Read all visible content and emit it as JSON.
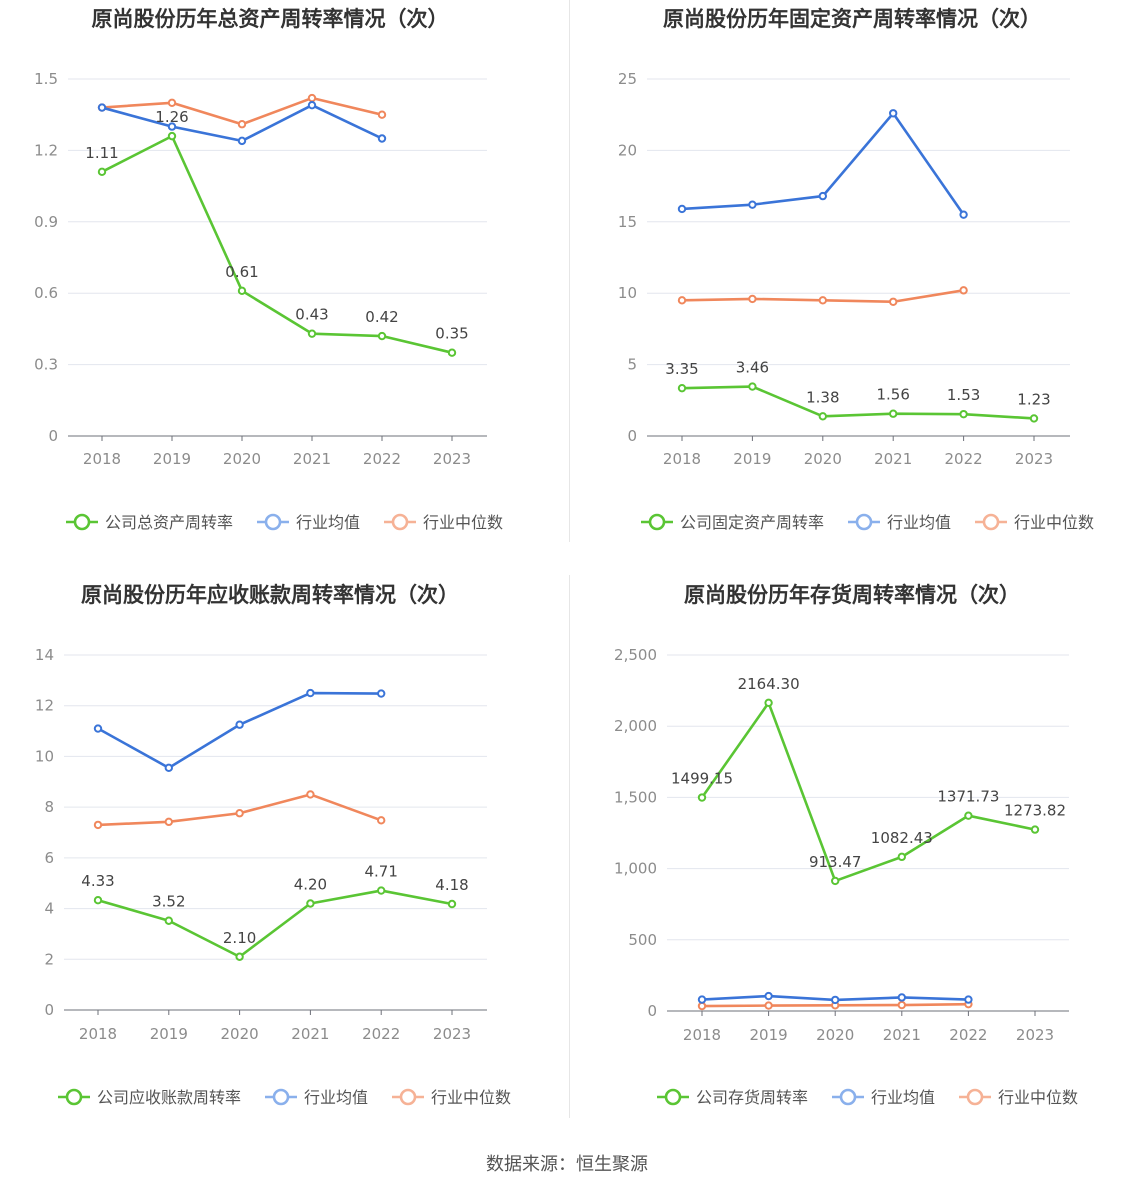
{
  "legend_labels": [
    "行业均值",
    "行业中位数"
  ],
  "colors": {
    "company": "#5ac534",
    "avg": "#3a74d8",
    "median": "#f0875c"
  },
  "footer": "数据来源：恒生聚源",
  "chart_data": [
    {
      "type": "line",
      "title": "原尚股份历年总资产周转率情况（次）",
      "categories": [
        "2018",
        "2019",
        "2020",
        "2021",
        "2022",
        "2023"
      ],
      "y_ticks": [
        "0",
        "0.3",
        "0.6",
        "0.9",
        "1.2",
        "1.5"
      ],
      "ylim": [
        0,
        1.5
      ],
      "grid": true,
      "legend_position": "bottom",
      "series": [
        {
          "name": "公司总资产周转率",
          "values": [
            1.11,
            1.26,
            0.61,
            0.43,
            0.42,
            0.35
          ],
          "labels": [
            "1.11",
            "1.26",
            "0.61",
            "0.43",
            "0.42",
            "0.35"
          ]
        },
        {
          "name": "行业均值",
          "values": [
            1.38,
            1.3,
            1.24,
            1.39,
            1.25,
            null
          ]
        },
        {
          "name": "行业中位数",
          "values": [
            1.38,
            1.4,
            1.31,
            1.42,
            1.35,
            null
          ]
        }
      ]
    },
    {
      "type": "line",
      "title": "原尚股份历年固定资产周转率情况（次）",
      "categories": [
        "2018",
        "2019",
        "2020",
        "2021",
        "2022",
        "2023"
      ],
      "y_ticks": [
        "0",
        "5",
        "10",
        "15",
        "20",
        "25"
      ],
      "ylim": [
        0,
        25
      ],
      "grid": true,
      "legend_position": "bottom",
      "series": [
        {
          "name": "公司固定资产周转率",
          "values": [
            3.35,
            3.46,
            1.38,
            1.56,
            1.53,
            1.23
          ],
          "labels": [
            "3.35",
            "3.46",
            "1.38",
            "1.56",
            "1.53",
            "1.23"
          ]
        },
        {
          "name": "行业均值",
          "values": [
            15.9,
            16.2,
            16.8,
            22.6,
            15.5,
            null
          ]
        },
        {
          "name": "行业中位数",
          "values": [
            9.5,
            9.6,
            9.5,
            9.4,
            10.2,
            null
          ]
        }
      ]
    },
    {
      "type": "line",
      "title": "原尚股份历年应收账款周转率情况（次）",
      "categories": [
        "2018",
        "2019",
        "2020",
        "2021",
        "2022",
        "2023"
      ],
      "y_ticks": [
        "0",
        "2",
        "4",
        "6",
        "8",
        "10",
        "12",
        "14"
      ],
      "ylim": [
        0,
        14
      ],
      "grid": true,
      "legend_position": "bottom",
      "series": [
        {
          "name": "公司应收账款周转率",
          "values": [
            4.33,
            3.52,
            2.1,
            4.2,
            4.71,
            4.18
          ],
          "labels": [
            "4.33",
            "3.52",
            "2.10",
            "4.20",
            "4.71",
            "4.18"
          ]
        },
        {
          "name": "行业均值",
          "values": [
            11.1,
            9.55,
            11.25,
            12.5,
            12.48,
            null
          ]
        },
        {
          "name": "行业中位数",
          "values": [
            7.3,
            7.42,
            7.76,
            8.5,
            7.48,
            null
          ]
        }
      ]
    },
    {
      "type": "line",
      "title": "原尚股份历年存货周转率情况（次）",
      "categories": [
        "2018",
        "2019",
        "2020",
        "2021",
        "2022",
        "2023"
      ],
      "y_ticks": [
        "0",
        "500",
        "1,000",
        "1,500",
        "2,000",
        "2,500"
      ],
      "ylim": [
        0,
        2500
      ],
      "grid": true,
      "legend_position": "bottom",
      "series": [
        {
          "name": "公司存货周转率",
          "values": [
            1499.15,
            2164.3,
            913.47,
            1082.43,
            1371.73,
            1273.82
          ],
          "labels": [
            "1499.15",
            "2164.30",
            "913.47",
            "1082.43",
            "1371.73",
            "1273.82"
          ]
        },
        {
          "name": "行业均值",
          "values": [
            80,
            105,
            78,
            95,
            80,
            null
          ]
        },
        {
          "name": "行业中位数",
          "values": [
            35,
            38,
            40,
            42,
            48,
            null
          ]
        }
      ]
    }
  ]
}
